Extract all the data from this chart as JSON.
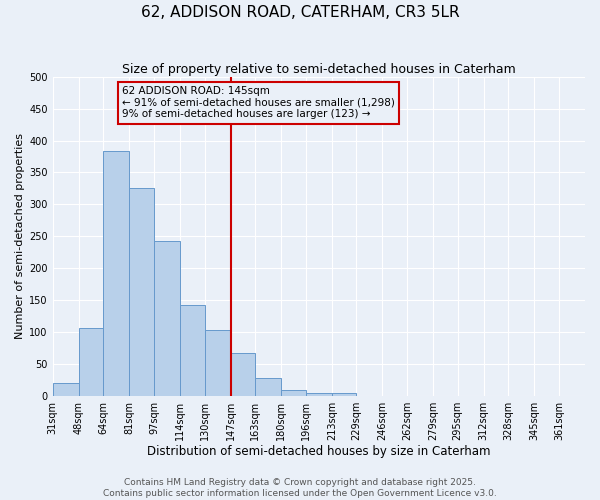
{
  "title": "62, ADDISON ROAD, CATERHAM, CR3 5LR",
  "subtitle": "Size of property relative to semi-detached houses in Caterham",
  "xlabel": "Distribution of semi-detached houses by size in Caterham",
  "ylabel": "Number of semi-detached properties",
  "bin_labels": [
    "31sqm",
    "48sqm",
    "64sqm",
    "81sqm",
    "97sqm",
    "114sqm",
    "130sqm",
    "147sqm",
    "163sqm",
    "180sqm",
    "196sqm",
    "213sqm",
    "229sqm",
    "246sqm",
    "262sqm",
    "279sqm",
    "295sqm",
    "312sqm",
    "328sqm",
    "345sqm",
    "361sqm"
  ],
  "bin_edges": [
    31,
    48,
    64,
    81,
    97,
    114,
    130,
    147,
    163,
    180,
    196,
    213,
    229,
    246,
    262,
    279,
    295,
    312,
    328,
    345,
    361,
    378
  ],
  "bar_heights": [
    20,
    107,
    383,
    325,
    243,
    143,
    103,
    68,
    29,
    9,
    5,
    5,
    0,
    0,
    0,
    0,
    0,
    0,
    0,
    0,
    0
  ],
  "bar_color": "#b8d0ea",
  "bar_edge_color": "#6699cc",
  "property_line_x": 147,
  "property_label": "62 ADDISON ROAD: 145sqm",
  "annotation_line1": "← 91% of semi-detached houses are smaller (1,298)",
  "annotation_line2": "9% of semi-detached houses are larger (123) →",
  "ylim": [
    0,
    500
  ],
  "yticks": [
    0,
    50,
    100,
    150,
    200,
    250,
    300,
    350,
    400,
    450,
    500
  ],
  "bg_color": "#eaf0f8",
  "grid_color": "#ffffff",
  "footer_line1": "Contains HM Land Registry data © Crown copyright and database right 2025.",
  "footer_line2": "Contains public sector information licensed under the Open Government Licence v3.0.",
  "annotation_box_color": "#cc0000",
  "vline_color": "#cc0000",
  "title_fontsize": 11,
  "subtitle_fontsize": 9,
  "xlabel_fontsize": 8.5,
  "ylabel_fontsize": 8,
  "tick_fontsize": 7,
  "annotation_fontsize": 7.5,
  "footer_fontsize": 6.5
}
